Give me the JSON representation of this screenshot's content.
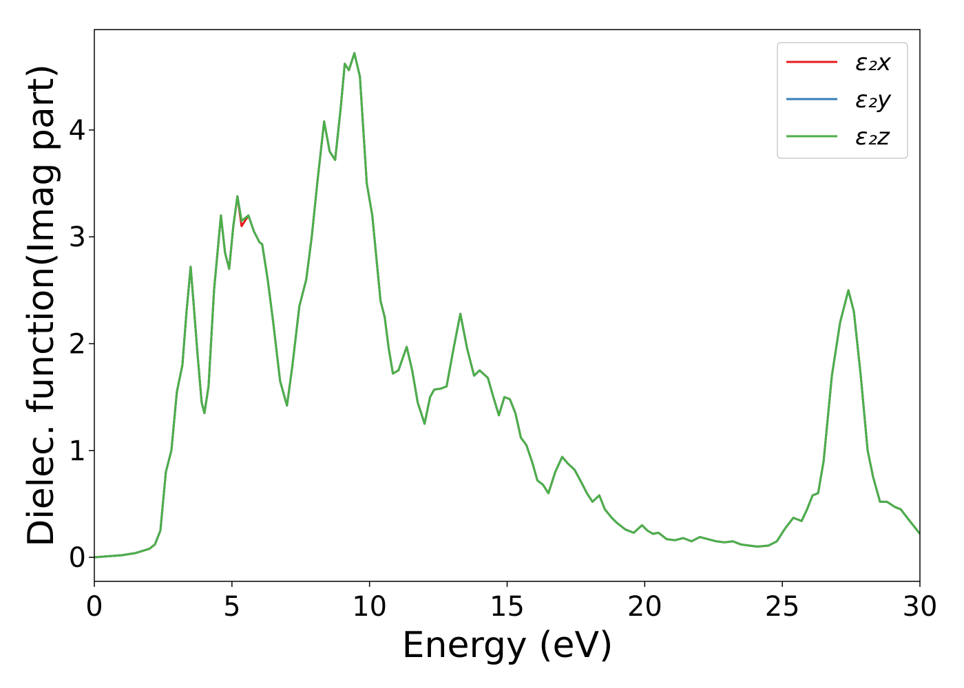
{
  "chart_data": {
    "type": "line",
    "xlabel": "Energy (eV)",
    "ylabel": "Dielec. function(Imag part)",
    "xlim": [
      0,
      30
    ],
    "ylim": [
      -0.225,
      4.94
    ],
    "xticks": [
      0,
      5,
      10,
      15,
      20,
      25,
      30
    ],
    "yticks": [
      0,
      1,
      2,
      3,
      4
    ],
    "legend": "upper right",
    "x": [
      0,
      0.5,
      1,
      1.5,
      2,
      2.2,
      2.4,
      2.6,
      2.8,
      3.0,
      3.2,
      3.35,
      3.5,
      3.6,
      3.75,
      3.9,
      4.0,
      4.15,
      4.35,
      4.6,
      4.75,
      4.9,
      5.05,
      5.2,
      5.35,
      5.6,
      5.8,
      6.0,
      6.1,
      6.3,
      6.5,
      6.75,
      7.0,
      7.2,
      7.45,
      7.7,
      7.9,
      8.1,
      8.35,
      8.55,
      8.75,
      8.95,
      9.1,
      9.25,
      9.45,
      9.65,
      9.9,
      10.1,
      10.25,
      10.4,
      10.55,
      10.7,
      10.85,
      11.05,
      11.35,
      11.55,
      11.75,
      12.0,
      12.2,
      12.35,
      12.6,
      12.8,
      13.05,
      13.3,
      13.55,
      13.8,
      14.0,
      14.3,
      14.5,
      14.7,
      14.9,
      15.1,
      15.3,
      15.5,
      15.7,
      15.9,
      16.1,
      16.3,
      16.5,
      16.75,
      17.0,
      17.2,
      17.45,
      17.7,
      17.9,
      18.1,
      18.35,
      18.55,
      18.8,
      19.0,
      19.3,
      19.6,
      19.9,
      20.1,
      20.3,
      20.5,
      20.8,
      21.1,
      21.4,
      21.7,
      22.0,
      22.3,
      22.6,
      22.9,
      23.2,
      23.5,
      23.8,
      24.1,
      24.5,
      24.8,
      25.1,
      25.4,
      25.7,
      25.9,
      26.1,
      26.3,
      26.5,
      26.8,
      27.1,
      27.4,
      27.6,
      27.85,
      28.1,
      28.3,
      28.55,
      28.8,
      29.1,
      29.3,
      29.6,
      30.0
    ],
    "series": [
      {
        "name": "ε₂x",
        "color": "#e41a1c",
        "values": [
          0.0,
          0.01,
          0.02,
          0.04,
          0.08,
          0.12,
          0.25,
          0.8,
          1.0,
          1.55,
          1.8,
          2.3,
          2.72,
          2.4,
          1.9,
          1.45,
          1.35,
          1.6,
          2.5,
          3.2,
          2.85,
          2.7,
          3.1,
          3.38,
          3.1,
          3.2,
          3.05,
          2.95,
          2.93,
          2.6,
          2.2,
          1.65,
          1.42,
          1.8,
          2.35,
          2.6,
          3.0,
          3.5,
          4.08,
          3.8,
          3.72,
          4.2,
          4.62,
          4.56,
          4.72,
          4.5,
          3.5,
          3.2,
          2.8,
          2.4,
          2.25,
          1.95,
          1.72,
          1.75,
          1.97,
          1.75,
          1.45,
          1.25,
          1.5,
          1.57,
          1.58,
          1.6,
          1.95,
          2.28,
          1.95,
          1.7,
          1.75,
          1.68,
          1.5,
          1.33,
          1.5,
          1.48,
          1.35,
          1.12,
          1.05,
          0.9,
          0.72,
          0.68,
          0.6,
          0.8,
          0.94,
          0.88,
          0.82,
          0.7,
          0.6,
          0.52,
          0.58,
          0.45,
          0.37,
          0.32,
          0.26,
          0.23,
          0.3,
          0.25,
          0.22,
          0.23,
          0.17,
          0.16,
          0.18,
          0.15,
          0.19,
          0.17,
          0.15,
          0.14,
          0.15,
          0.12,
          0.11,
          0.1,
          0.11,
          0.15,
          0.27,
          0.37,
          0.34,
          0.45,
          0.58,
          0.6,
          0.9,
          1.7,
          2.2,
          2.5,
          2.3,
          1.7,
          1.0,
          0.75,
          0.52,
          0.52,
          0.47,
          0.45,
          0.35,
          0.22
        ]
      },
      {
        "name": "ε₂y",
        "color": "#377eb8",
        "values": [
          0.0,
          0.01,
          0.02,
          0.04,
          0.08,
          0.12,
          0.25,
          0.8,
          1.0,
          1.55,
          1.8,
          2.3,
          2.72,
          2.4,
          1.9,
          1.45,
          1.35,
          1.6,
          2.5,
          3.2,
          2.85,
          2.7,
          3.1,
          3.38,
          3.15,
          3.2,
          3.05,
          2.95,
          2.93,
          2.6,
          2.2,
          1.65,
          1.42,
          1.8,
          2.35,
          2.6,
          3.0,
          3.5,
          4.08,
          3.8,
          3.72,
          4.2,
          4.62,
          4.56,
          4.72,
          4.5,
          3.5,
          3.2,
          2.8,
          2.4,
          2.25,
          1.95,
          1.72,
          1.75,
          1.97,
          1.75,
          1.45,
          1.25,
          1.5,
          1.57,
          1.58,
          1.6,
          1.95,
          2.28,
          1.95,
          1.7,
          1.75,
          1.68,
          1.5,
          1.33,
          1.5,
          1.48,
          1.35,
          1.12,
          1.05,
          0.9,
          0.72,
          0.68,
          0.6,
          0.8,
          0.94,
          0.88,
          0.82,
          0.7,
          0.6,
          0.52,
          0.58,
          0.45,
          0.37,
          0.32,
          0.26,
          0.23,
          0.3,
          0.25,
          0.22,
          0.23,
          0.17,
          0.16,
          0.18,
          0.15,
          0.19,
          0.17,
          0.15,
          0.14,
          0.15,
          0.12,
          0.11,
          0.1,
          0.11,
          0.15,
          0.27,
          0.37,
          0.34,
          0.45,
          0.58,
          0.6,
          0.9,
          1.7,
          2.2,
          2.5,
          2.3,
          1.7,
          1.0,
          0.75,
          0.52,
          0.52,
          0.47,
          0.45,
          0.35,
          0.22
        ]
      },
      {
        "name": "ε₂z",
        "color": "#4daf4a",
        "values": [
          0.0,
          0.01,
          0.02,
          0.04,
          0.08,
          0.12,
          0.25,
          0.8,
          1.0,
          1.55,
          1.8,
          2.3,
          2.72,
          2.4,
          1.9,
          1.45,
          1.35,
          1.6,
          2.5,
          3.2,
          2.85,
          2.7,
          3.1,
          3.38,
          3.15,
          3.2,
          3.05,
          2.95,
          2.93,
          2.6,
          2.2,
          1.65,
          1.42,
          1.8,
          2.35,
          2.6,
          3.0,
          3.5,
          4.08,
          3.8,
          3.72,
          4.2,
          4.62,
          4.56,
          4.72,
          4.5,
          3.5,
          3.2,
          2.8,
          2.4,
          2.25,
          1.95,
          1.72,
          1.75,
          1.97,
          1.75,
          1.45,
          1.25,
          1.5,
          1.57,
          1.58,
          1.6,
          1.95,
          2.28,
          1.95,
          1.7,
          1.75,
          1.68,
          1.5,
          1.33,
          1.5,
          1.48,
          1.35,
          1.12,
          1.05,
          0.9,
          0.72,
          0.68,
          0.6,
          0.8,
          0.94,
          0.88,
          0.82,
          0.7,
          0.6,
          0.52,
          0.58,
          0.45,
          0.37,
          0.32,
          0.26,
          0.23,
          0.3,
          0.25,
          0.22,
          0.23,
          0.17,
          0.16,
          0.18,
          0.15,
          0.19,
          0.17,
          0.15,
          0.14,
          0.15,
          0.12,
          0.11,
          0.1,
          0.11,
          0.15,
          0.27,
          0.37,
          0.34,
          0.45,
          0.58,
          0.6,
          0.9,
          1.7,
          2.2,
          2.5,
          2.3,
          1.7,
          1.0,
          0.75,
          0.52,
          0.52,
          0.47,
          0.45,
          0.35,
          0.22
        ]
      }
    ]
  }
}
